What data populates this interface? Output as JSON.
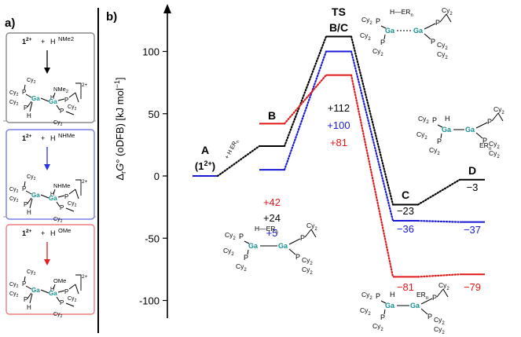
{
  "panel_a": {
    "label": "a)",
    "boxes": [
      {
        "reactant": "1",
        "charge": "2+",
        "plus": "+",
        "h": "H",
        "substituent": "NMe2",
        "group": "NMe",
        "group_sub": "2",
        "arrow_color": "#000000",
        "border_color": "#8a8a8a"
      },
      {
        "reactant": "1",
        "charge": "2+",
        "plus": "+",
        "h": "H",
        "substituent": "NHMe",
        "group": "NHMe",
        "group_sub": "",
        "arrow_color": "#2b36d9",
        "border_color": "#7d7ee6"
      },
      {
        "reactant": "1",
        "charge": "2+",
        "plus": "+",
        "h": "H",
        "substituent": "OMe",
        "group": "OMe",
        "group_sub": "",
        "arrow_color": "#e02020",
        "border_color": "#ef7f7f"
      }
    ]
  },
  "panel_b": {
    "label": "b)"
  },
  "struct_text": {
    "ga": "Ga",
    "p": "P",
    "cy": "Cy",
    "cy_sub": "2",
    "h": "H",
    "er": "ER",
    "er_sub": "n",
    "charge": "2+"
  },
  "colors": {
    "black": "#000000",
    "blue": "#1a1ad6",
    "red": "#e01818",
    "ga": "#168f8f"
  },
  "chart_data": {
    "type": "energy-profile",
    "ylabel": "ΔrG° (oDFB) [kJ mol⁻¹]",
    "ylabel_delta": "Δ",
    "ylabel_sub": "r",
    "ylabel_g": "G",
    "ylabel_deg": "°",
    "ylabel_rest": " (oDFB) [kJ mol",
    "ylabel_sup": "−1",
    "ylabel_close": "]",
    "ylim": [
      -115,
      125
    ],
    "yticks": [
      {
        "value": 100,
        "label": "100"
      },
      {
        "value": 50,
        "label": "50"
      },
      {
        "value": 0,
        "label": "0"
      },
      {
        "value": -50,
        "label": "-50"
      },
      {
        "value": -100,
        "label": "-100"
      }
    ],
    "stages": [
      "A",
      "B",
      "TS",
      "C",
      "D"
    ],
    "stage_labels": {
      "A": "A",
      "A_sub": "(1",
      "A_sup": "2+",
      "A_close": ")",
      "B": "B",
      "TS": "TS",
      "TS2": "B/C",
      "C": "C",
      "D": "D"
    },
    "arrow_text": {
      "plus": "+",
      "h": "H",
      "er": "ER",
      "er_sub": "n"
    },
    "series": [
      {
        "name": "NMe2",
        "color": "#000000",
        "values": [
          0,
          24,
          112,
          -23,
          -3
        ],
        "labels": {
          "B": "+24",
          "TS": "+112",
          "C": "−23",
          "D": "−3"
        }
      },
      {
        "name": "NHMe",
        "color": "#1a1ad6",
        "values": [
          0,
          5,
          100,
          -36,
          -37
        ],
        "labels": {
          "B": "+5",
          "TS": "+100",
          "C": "−36",
          "D": "−37"
        }
      },
      {
        "name": "OMe",
        "color": "#e01818",
        "values": [
          0,
          42,
          81,
          -81,
          -79
        ],
        "labels": {
          "B": "+42",
          "TS": "+81",
          "C": "−81",
          "D": "−79"
        }
      }
    ]
  }
}
